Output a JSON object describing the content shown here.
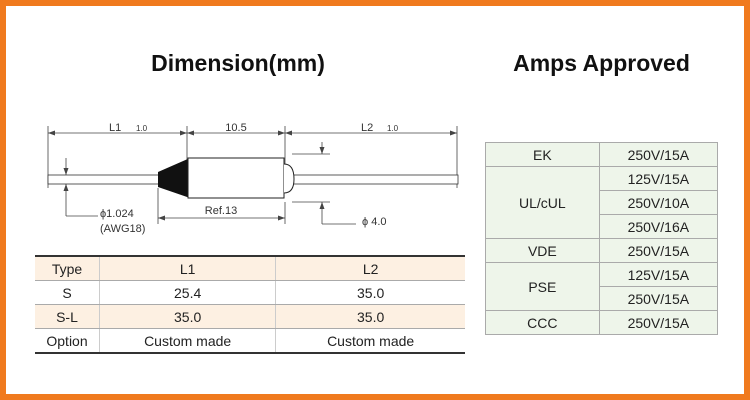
{
  "dimension": {
    "title": "Dimension(mm)",
    "labels": {
      "l1": "L1",
      "l1_tol": "1.0",
      "mid": "10.5",
      "l2": "L2",
      "l2_tol": "1.0",
      "wire": "ϕ1.024",
      "awg": "(AWG18)",
      "ref": "Ref.13",
      "body": "ϕ 4.0"
    }
  },
  "dimension_table": {
    "header": [
      "Type",
      "L1",
      "L2"
    ],
    "rows": [
      [
        "S",
        "25.4",
        "35.0"
      ],
      [
        "S-L",
        "35.0",
        "35.0"
      ],
      [
        "Option",
        "Custom made",
        "Custom made"
      ]
    ]
  },
  "amps": {
    "title": "Amps Approved",
    "rows": [
      {
        "standard": "EK",
        "ratings": [
          "250V/15A"
        ]
      },
      {
        "standard": "UL/cUL",
        "ratings": [
          "125V/15A",
          "250V/10A",
          "250V/16A"
        ]
      },
      {
        "standard": "VDE",
        "ratings": [
          "250V/15A"
        ]
      },
      {
        "standard": "PSE",
        "ratings": [
          "125V/15A",
          "250V/15A"
        ]
      },
      {
        "standard": "CCC",
        "ratings": [
          "250V/15A"
        ]
      }
    ]
  }
}
